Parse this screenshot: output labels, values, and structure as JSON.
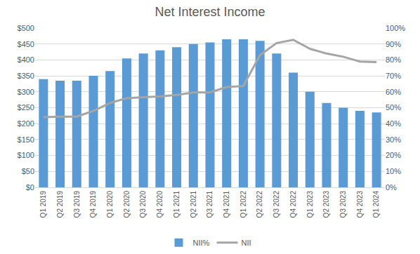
{
  "chart_data": {
    "type": "bar",
    "title": "Net Interest Income",
    "categories": [
      "Q1 2019",
      "Q2 2019",
      "Q3 2019",
      "Q4 2019",
      "Q1 2020",
      "Q2 2020",
      "Q3 2020",
      "Q4 2020",
      "Q1 2021",
      "Q2 2021",
      "Q3 2021",
      "Q4 2021",
      "Q1 2022",
      "Q2 2022",
      "Q3 2022",
      "Q4 2022",
      "Q1 2023",
      "Q2 2023",
      "Q3 2023",
      "Q4 2023",
      "Q1 2024"
    ],
    "series": [
      {
        "name": "NII%",
        "type": "bar",
        "color": "#5B9BD5",
        "values": [
          68,
          67,
          67,
          70,
          73,
          81,
          84,
          86,
          88,
          90,
          91,
          93,
          93,
          92,
          84,
          72,
          60,
          53,
          50,
          48,
          47
        ]
      },
      {
        "name": "NII",
        "type": "line",
        "color": "#A5A5A5",
        "axis": "y2",
        "values": [
          220,
          222,
          222,
          240,
          265,
          280,
          283,
          285,
          290,
          298,
          298,
          315,
          318,
          415,
          453,
          463,
          435,
          420,
          410,
          395,
          393
        ]
      }
    ],
    "ylim": [
      0,
      100
    ],
    "yticks": [
      {
        "value": 0,
        "label": "0%"
      },
      {
        "value": 10,
        "label": "10%"
      },
      {
        "value": 20,
        "label": "20%"
      },
      {
        "value": 30,
        "label": "30%"
      },
      {
        "value": 40,
        "label": "40%"
      },
      {
        "value": 50,
        "label": "50%"
      },
      {
        "value": 60,
        "label": "60%"
      },
      {
        "value": 70,
        "label": "70%"
      },
      {
        "value": 80,
        "label": "80%"
      },
      {
        "value": 90,
        "label": "90%"
      },
      {
        "value": 100,
        "label": "100%"
      }
    ],
    "y2lim": [
      0,
      500
    ],
    "y2ticks": [
      {
        "value": 0,
        "label": "$0"
      },
      {
        "value": 50,
        "label": "$50"
      },
      {
        "value": 100,
        "label": "$100"
      },
      {
        "value": 150,
        "label": "$150"
      },
      {
        "value": 200,
        "label": "$200"
      },
      {
        "value": 250,
        "label": "$250"
      },
      {
        "value": 300,
        "label": "$300"
      },
      {
        "value": 350,
        "label": "$350"
      },
      {
        "value": 400,
        "label": "$400"
      },
      {
        "value": 450,
        "label": "$450"
      },
      {
        "value": 500,
        "label": "$500"
      }
    ],
    "grid": true,
    "legend": "bottom"
  }
}
